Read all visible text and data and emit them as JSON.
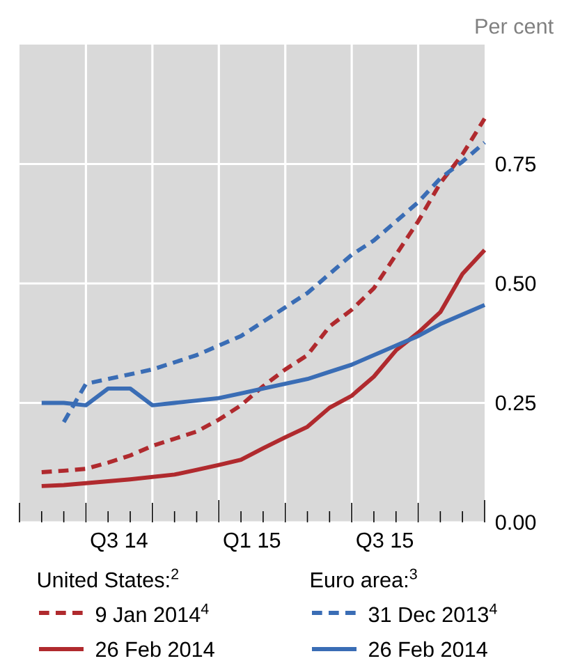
{
  "chart_data": {
    "type": "line",
    "ylabel": "Per cent",
    "x": [
      "2014-05",
      "2014-06",
      "2014-07",
      "2014-08",
      "2014-09",
      "2014-10",
      "2014-11",
      "2014-12",
      "2015-01",
      "2015-02",
      "2015-03",
      "2015-04",
      "2015-05",
      "2015-06",
      "2015-07",
      "2015-08",
      "2015-09",
      "2015-10",
      "2015-11",
      "2015-12",
      "2016-01"
    ],
    "series": [
      {
        "name": "9 Jan 2014$^{4}$",
        "color": "#b02a2e",
        "line_style": "dashed",
        "values": [
          0.105,
          0.108,
          0.112,
          0.125,
          0.14,
          0.16,
          0.175,
          0.19,
          0.215,
          0.245,
          0.285,
          0.32,
          0.35,
          0.41,
          0.445,
          0.49,
          0.56,
          0.63,
          0.71,
          0.77,
          0.845
        ]
      },
      {
        "name": "26 Feb 2014",
        "color": "#b02a2e",
        "line_style": "solid",
        "values": [
          0.076,
          0.078,
          0.082,
          0.086,
          0.09,
          0.095,
          0.1,
          0.11,
          0.12,
          0.131,
          0.155,
          0.178,
          0.2,
          0.24,
          0.265,
          0.305,
          0.36,
          0.397,
          0.44,
          0.52,
          0.57
        ]
      },
      {
        "name": "31 Dec 2013$^{4}$",
        "color": "#3a6db5",
        "line_style": "dashed",
        "values": [
          null,
          0.21,
          0.29,
          0.3,
          0.31,
          0.32,
          0.335,
          0.35,
          0.37,
          0.39,
          0.42,
          0.45,
          0.48,
          0.52,
          0.56,
          0.59,
          0.63,
          0.67,
          0.72,
          0.755,
          0.795
        ]
      },
      {
        "name": "26 Feb 2014",
        "color": "#3a6db5",
        "line_style": "solid",
        "values": [
          0.25,
          0.25,
          0.245,
          0.28,
          0.28,
          0.245,
          0.25,
          0.255,
          0.26,
          0.27,
          0.28,
          0.29,
          0.3,
          0.315,
          0.33,
          0.35,
          0.37,
          0.39,
          0.415,
          0.435,
          0.455
        ]
      }
    ],
    "annotations": [
      "United States:$^{2}$",
      "Euro area:$^{3}$"
    ],
    "xlim": [
      "2014-04",
      "2016-01"
    ],
    "xticks": [
      {
        "value": "2014-04",
        "label": null
      },
      {
        "value": "2014-05",
        "label": null
      },
      {
        "value": "2014-06",
        "label": null
      },
      {
        "value": "2014-07",
        "label": null
      },
      {
        "value": "2014-08",
        "label": null
      },
      {
        "value": "2014-09",
        "label": null
      },
      {
        "value": "2014-10",
        "label": null
      },
      {
        "value": "2014-11",
        "label": null
      },
      {
        "value": "2014-12",
        "label": null
      },
      {
        "value": "2015-01",
        "label": null
      },
      {
        "value": "2015-02",
        "label": null
      },
      {
        "value": "2015-03",
        "label": null
      },
      {
        "value": "2015-04",
        "label": null
      },
      {
        "value": "2015-05",
        "label": null
      },
      {
        "value": "2015-06",
        "label": null
      },
      {
        "value": "2015-07",
        "label": null
      },
      {
        "value": "2015-08",
        "label": null
      },
      {
        "value": "2015-09",
        "label": null
      },
      {
        "value": "2015-10",
        "label": null
      },
      {
        "value": "2015-11",
        "label": null
      },
      {
        "value": "2015-12",
        "label": null
      },
      {
        "value": "2016-01",
        "label": null
      },
      {
        "value": "2014-08-16",
        "label": "Q3 14"
      },
      {
        "value": "2015-02-16",
        "label": "Q1 15"
      },
      {
        "value": "2015-08-16",
        "label": "Q3 15"
      }
    ],
    "ylim": [
      0,
      1
    ],
    "yticks": [
      {
        "value": 0,
        "label": "0.00"
      },
      {
        "value": 0.25,
        "label": "0.25"
      },
      {
        "value": 0.5,
        "label": "0.50"
      },
      {
        "value": 0.75,
        "label": "0.75"
      }
    ],
    "grid": true,
    "legend": "bottom",
    "marker": "none"
  }
}
